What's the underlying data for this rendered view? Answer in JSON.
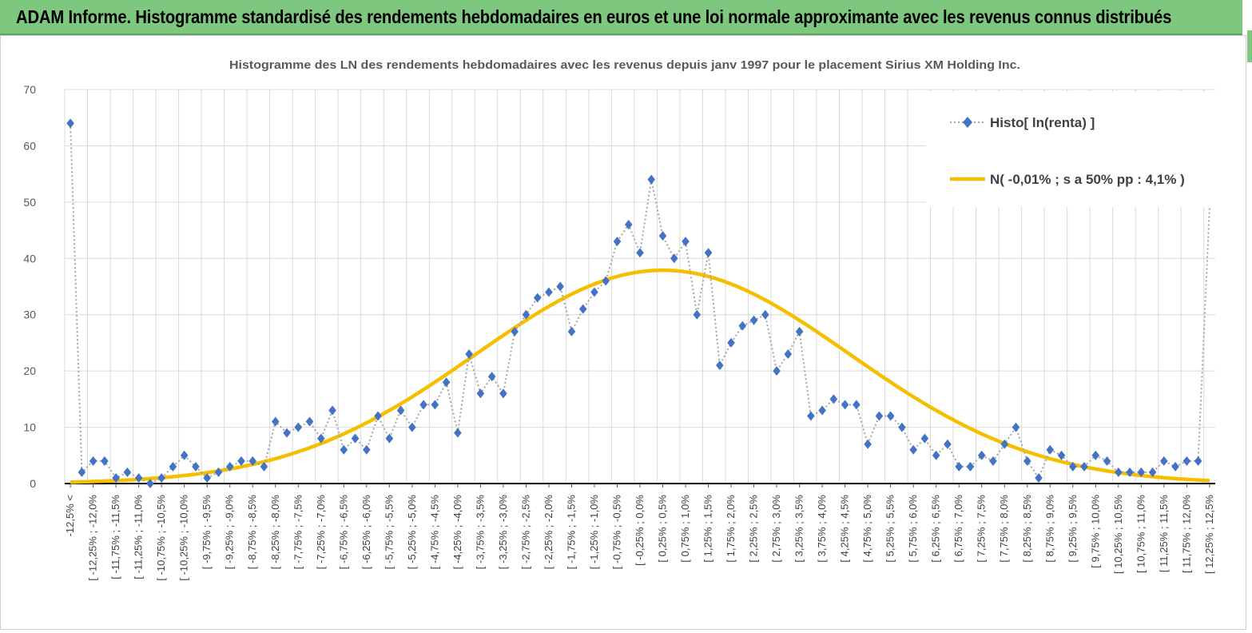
{
  "banner": {
    "title": "ADAM Informe. Histogramme standardisé des rendements hebdomadaires en euros et une loi normale approximante avec les revenus connus distribués"
  },
  "colors": {
    "banner_bg": "#7ec77e",
    "histo": "#4472c4",
    "normal": "#f5bf00",
    "grid": "#d9d9d9"
  },
  "chart_data": {
    "type": "line",
    "title": "Histogramme des LN des rendements hebdomadaires avec les revenus depuis janv 1997 pour le placement Sirius XM Holding Inc.",
    "ylim": [
      0,
      70
    ],
    "yticks": [
      0,
      10,
      20,
      30,
      40,
      50,
      60,
      70
    ],
    "grid": true,
    "legend_position": "top-right",
    "x_tick_labels": [
      "-12,5% <",
      "[ -12,25% ; -12,0%",
      "[ -11,75% ; -11,5%",
      "[ -11,25% ; -11,0%",
      "[ -10,75% ; -10,5%",
      "[ -10,25% ; -10,0%",
      "[ -9,75% ; -9,5%",
      "[ -9,25% ; -9,0%",
      "[ -8,75% ; -8,5%",
      "[ -8,25% ; -8,0%",
      "[ -7,75% ; -7,5%",
      "[ -7,25% ; -7,0%",
      "[ -6,75% ; -6,5%",
      "[ -6,25% ; -6,0%",
      "[ -5,75% ; -5,5%",
      "[ -5,25% ; -5,0%",
      "[ -4,75% ; -4,5%",
      "[ -4,25% ; -4,0%",
      "[ -3,75% ; -3,5%",
      "[ -3,25% ; -3,0%",
      "[ -2,75% ; -2,5%",
      "[ -2,25% ; -2,0%",
      "[ -1,75% ; -1,5%",
      "[ -1,25% ; -1,0%",
      "[ -0,75% ; -0,5%",
      "[ -0,25% ; 0,0%",
      "[ 0,25% ; 0,5%",
      "[ 0,75% ; 1,0%",
      "[ 1,25% ; 1,5%",
      "[ 1,75% ; 2,0%",
      "[ 2,25% ; 2,5%",
      "[ 2,75% ; 3,0%",
      "[ 3,25% ; 3,5%",
      "[ 3,75% ; 4,0%",
      "[ 4,25% ; 4,5%",
      "[ 4,75% ; 5,0%",
      "[ 5,25% ; 5,5%",
      "[ 5,75% ; 6,0%",
      "[ 6,25% ; 6,5%",
      "[ 6,75% ; 7,0%",
      "[ 7,25% ; 7,5%",
      "[ 7,75% ; 8,0%",
      "[ 8,25% ; 8,5%",
      "[ 8,75% ; 9,0%",
      "[ 9,25% ; 9,5%",
      "[ 9,75% ; 10,0%",
      "[ 10,25% ; 10,5%",
      "[ 10,75% ; 11,0%",
      "[ 11,25% ; 11,5%",
      "[ 11,75% ; 12,0%",
      "[ 12,25% ; 12,5%"
    ],
    "series": [
      {
        "name": "Histo[ ln(renta) ]",
        "style": "dotted-line-diamond-markers",
        "values": [
          64,
          2,
          4,
          4,
          1,
          2,
          1,
          0,
          1,
          3,
          5,
          3,
          1,
          2,
          3,
          4,
          4,
          3,
          11,
          9,
          10,
          11,
          8,
          13,
          6,
          8,
          6,
          12,
          8,
          13,
          10,
          14,
          14,
          18,
          9,
          23,
          16,
          19,
          16,
          27,
          30,
          33,
          34,
          35,
          27,
          31,
          34,
          36,
          43,
          46,
          41,
          54,
          44,
          40,
          43,
          30,
          41,
          21,
          25,
          28,
          29,
          30,
          20,
          23,
          27,
          12,
          13,
          15,
          14,
          14,
          7,
          12,
          12,
          10,
          6,
          8,
          5,
          7,
          3,
          3,
          5,
          4,
          7,
          10,
          4,
          1,
          6,
          5,
          3,
          3,
          5,
          4,
          2,
          2,
          2,
          2,
          4,
          3,
          4,
          4,
          49
        ]
      },
      {
        "name": "N( -0,01% ; s a 50% pp : 4,1% )",
        "style": "solid-line",
        "mean_index": 52,
        "peak": 37.9,
        "sigma_bins": 16.4
      }
    ]
  }
}
